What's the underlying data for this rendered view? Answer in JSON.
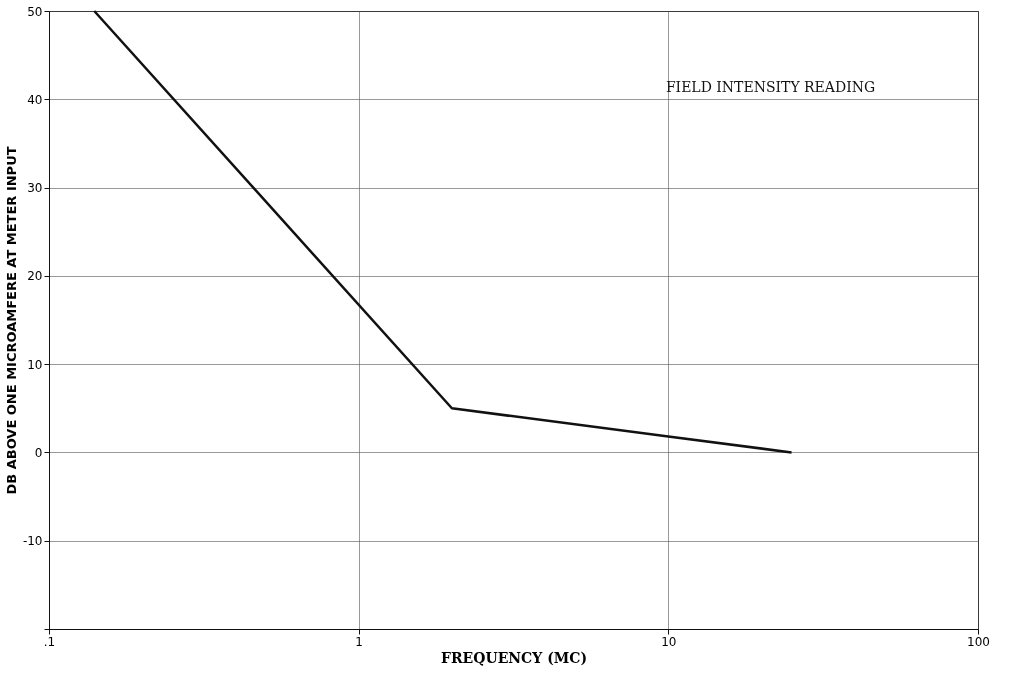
{
  "chart_data": {
    "type": "line",
    "xlabel": "FREQUENCY (MC)",
    "ylabel": "DB ABOVE ONE MICROAMFERE AT METER INPUT",
    "annotations": [
      "FIELD INTENSITY READING"
    ],
    "x": [
      0.14,
      2.0,
      10,
      25
    ],
    "series": [
      {
        "color": "#111111",
        "values": [
          50,
          5,
          1.8,
          0
        ]
      }
    ],
    "log": "x",
    "xlim": [
      0.1,
      100
    ],
    "ylim": [
      -20,
      50
    ],
    "xticks": [
      {
        "value": 0.1,
        "label": ".1"
      },
      1,
      10,
      100
    ],
    "yticks": [
      {
        "value": -20,
        "label": null
      },
      -10,
      0,
      10,
      20,
      30,
      40,
      50
    ],
    "grid": true,
    "marker": "none",
    "line_style": "solid"
  }
}
